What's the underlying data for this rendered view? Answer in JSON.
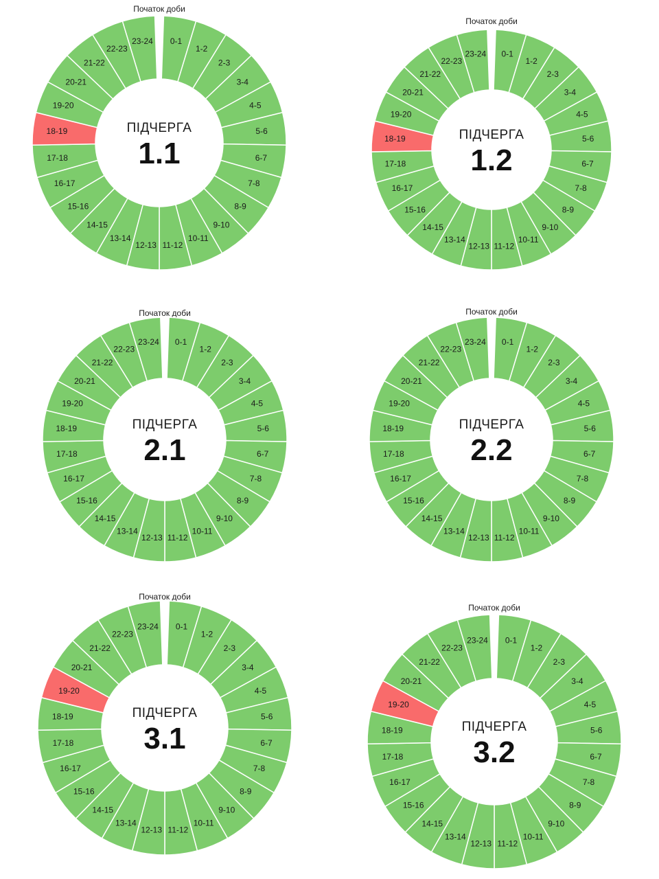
{
  "start_label": "Початок доби",
  "title_word": "ПІДЧЕРГА",
  "colors": {
    "on": "#7dcc6c",
    "off": "#f96b6b"
  },
  "hours": [
    "0-1",
    "1-2",
    "2-3",
    "3-4",
    "4-5",
    "5-6",
    "6-7",
    "7-8",
    "8-9",
    "9-10",
    "10-11",
    "11-12",
    "12-13",
    "13-14",
    "14-15",
    "15-16",
    "16-17",
    "17-18",
    "18-19",
    "19-20",
    "20-21",
    "21-22",
    "22-23",
    "23-24"
  ],
  "subqueues": [
    {
      "number": "1.1",
      "off_hours": [
        "18-19"
      ]
    },
    {
      "number": "1.2",
      "off_hours": [
        "18-19"
      ]
    },
    {
      "number": "2.1",
      "off_hours": []
    },
    {
      "number": "2.2",
      "off_hours": []
    },
    {
      "number": "3.1",
      "off_hours": [
        "19-20"
      ]
    },
    {
      "number": "3.2",
      "off_hours": [
        "19-20"
      ]
    }
  ]
}
